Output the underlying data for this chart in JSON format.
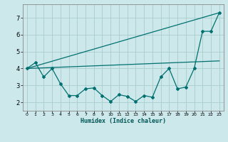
{
  "xlabel": "Humidex (Indice chaleur)",
  "background_color": "#cce8ea",
  "grid_color": "#aacccc",
  "line_color": "#007070",
  "line_y": [
    4.0,
    4.35,
    3.5,
    4.0,
    3.1,
    2.4,
    2.4,
    2.8,
    2.85,
    2.4,
    2.05,
    2.45,
    2.35,
    2.05,
    2.4,
    2.3,
    3.5,
    4.0,
    2.8,
    2.9,
    4.0,
    6.2,
    6.2,
    7.3
  ],
  "line_x": [
    0,
    1,
    2,
    3,
    4,
    5,
    6,
    7,
    8,
    9,
    10,
    11,
    12,
    13,
    14,
    15,
    16,
    17,
    18,
    19,
    20,
    21,
    22,
    23
  ],
  "upper_line": [
    [
      0,
      4.0
    ],
    [
      23,
      7.3
    ]
  ],
  "lower_line": [
    [
      0,
      4.0
    ],
    [
      23,
      4.45
    ]
  ],
  "ylim": [
    1.5,
    7.8
  ],
  "xlim": [
    -0.5,
    23.5
  ],
  "yticks": [
    2,
    3,
    4,
    5,
    6,
    7
  ],
  "xticks": [
    0,
    1,
    2,
    3,
    4,
    5,
    6,
    7,
    8,
    9,
    10,
    11,
    12,
    13,
    14,
    15,
    16,
    17,
    18,
    19,
    20,
    21,
    22,
    23
  ]
}
